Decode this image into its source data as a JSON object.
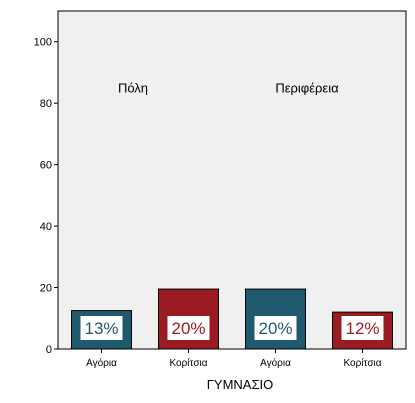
{
  "chart_data": {
    "type": "bar",
    "title": "",
    "xlabel": "ΓΥΜΝΑΣΙΟ",
    "ylabel": "",
    "ylim": [
      0,
      110
    ],
    "yticks": [
      0,
      20,
      40,
      60,
      80,
      100
    ],
    "grid": false,
    "groups": [
      {
        "label": "Πόλη",
        "bars": [
          0,
          1
        ]
      },
      {
        "label": "Περιφέρεια",
        "bars": [
          2,
          3
        ]
      }
    ],
    "categories": [
      "Αγόρια",
      "Κορίτσια",
      "Αγόρια",
      "Κορίτσια"
    ],
    "values": [
      12.5,
      19.5,
      19.5,
      12
    ],
    "data_labels": [
      "13%",
      "20%",
      "20%",
      "12%"
    ],
    "bar_colors": [
      "#1f5a6e",
      "#9b1b22",
      "#1f5a6e",
      "#9b1b22"
    ],
    "plot_background": "#f0f0f0",
    "legend": "none"
  }
}
